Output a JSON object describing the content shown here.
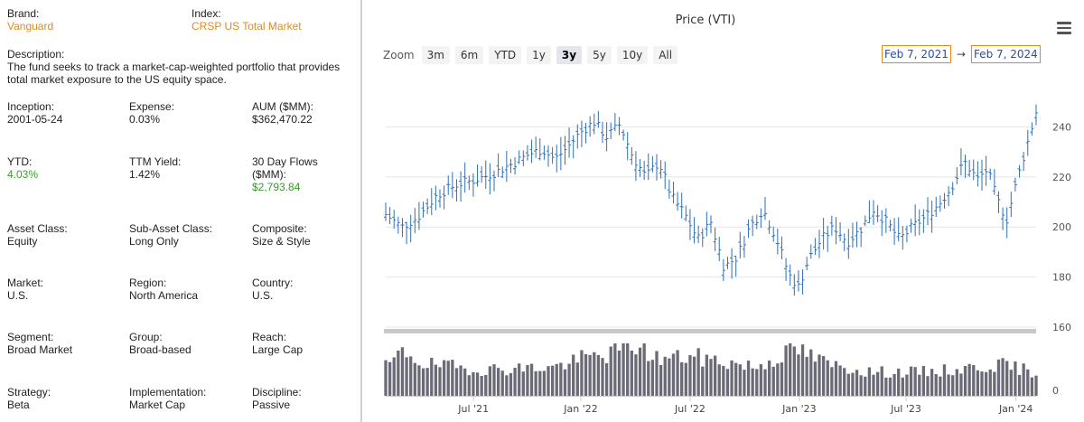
{
  "fund": {
    "brand": {
      "label": "Brand:",
      "value": "Vanguard"
    },
    "index": {
      "label": "Index:",
      "value": "CRSP US Total Market"
    },
    "description": {
      "label": "Description:",
      "value": "The fund seeks to track a market-cap-weighted portfolio that provides total market exposure to the US equity space."
    },
    "inception": {
      "label": "Inception:",
      "value": "2001-05-24"
    },
    "expense": {
      "label": "Expense:",
      "value": "0.03%"
    },
    "aum": {
      "label": "AUM ($MM):",
      "value": "$362,470.22"
    },
    "ytd": {
      "label": "YTD:",
      "value": "4.03%"
    },
    "ttm_yield": {
      "label": "TTM Yield:",
      "value": "1.42%"
    },
    "flows": {
      "label": "30 Day Flows ($MM):",
      "value": "$2,793.84"
    },
    "asset_class": {
      "label": "Asset Class:",
      "value": "Equity"
    },
    "sub_asset_class": {
      "label": "Sub-Asset Class:",
      "value": "Long Only"
    },
    "composite": {
      "label": "Composite:",
      "value": "Size & Style"
    },
    "market": {
      "label": "Market:",
      "value": "U.S."
    },
    "region": {
      "label": "Region:",
      "value": "North America"
    },
    "country": {
      "label": "Country:",
      "value": "U.S."
    },
    "segment": {
      "label": "Segment:",
      "value": "Broad Market"
    },
    "group": {
      "label": "Group:",
      "value": "Broad-based"
    },
    "reach": {
      "label": "Reach:",
      "value": "Large Cap"
    },
    "strategy": {
      "label": "Strategy:",
      "value": "Beta"
    },
    "implementation": {
      "label": "Implementation:",
      "value": "Market Cap"
    },
    "discipline": {
      "label": "Discipline:",
      "value": "Passive"
    }
  },
  "colors": {
    "accent": "#e08a1e",
    "positive": "#3a9a2e",
    "price": "#2f6fb5",
    "volume": "#6b6b78"
  },
  "zoom": {
    "label": "Zoom",
    "buttons": [
      "3m",
      "6m",
      "YTD",
      "1y",
      "3y",
      "5y",
      "10y",
      "All"
    ],
    "active": "3y"
  },
  "range": {
    "from": "Feb 7, 2021",
    "arrow": "→",
    "to": "Feb 7, 2024"
  },
  "chart_data": {
    "type": "line",
    "title": "Price (VTI)",
    "price_axis": {
      "ticks": [
        160,
        180,
        200,
        220,
        240
      ],
      "min": 160,
      "max": 260
    },
    "volume_axis": {
      "ticks": [
        0
      ]
    },
    "x_ticks": [
      "Jul '21",
      "Jan '22",
      "Jul '22",
      "Jan '23",
      "Jul '23",
      "Jan '24"
    ],
    "price_anchors": [
      {
        "t": 0.0,
        "v": 205
      },
      {
        "t": 0.025,
        "v": 200
      },
      {
        "t": 0.05,
        "v": 204
      },
      {
        "t": 0.08,
        "v": 213
      },
      {
        "t": 0.11,
        "v": 217
      },
      {
        "t": 0.14,
        "v": 219
      },
      {
        "t": 0.17,
        "v": 222
      },
      {
        "t": 0.2,
        "v": 226
      },
      {
        "t": 0.22,
        "v": 229
      },
      {
        "t": 0.24,
        "v": 231
      },
      {
        "t": 0.26,
        "v": 227
      },
      {
        "t": 0.28,
        "v": 232
      },
      {
        "t": 0.3,
        "v": 238
      },
      {
        "t": 0.32,
        "v": 242
      },
      {
        "t": 0.34,
        "v": 236
      },
      {
        "t": 0.36,
        "v": 241
      },
      {
        "t": 0.38,
        "v": 228
      },
      {
        "t": 0.4,
        "v": 220
      },
      {
        "t": 0.42,
        "v": 226
      },
      {
        "t": 0.44,
        "v": 212
      },
      {
        "t": 0.46,
        "v": 205
      },
      {
        "t": 0.48,
        "v": 195
      },
      {
        "t": 0.5,
        "v": 202
      },
      {
        "t": 0.52,
        "v": 184
      },
      {
        "t": 0.54,
        "v": 188
      },
      {
        "t": 0.56,
        "v": 200
      },
      {
        "t": 0.58,
        "v": 207
      },
      {
        "t": 0.6,
        "v": 196
      },
      {
        "t": 0.62,
        "v": 181
      },
      {
        "t": 0.635,
        "v": 176
      },
      {
        "t": 0.65,
        "v": 187
      },
      {
        "t": 0.67,
        "v": 195
      },
      {
        "t": 0.69,
        "v": 200
      },
      {
        "t": 0.71,
        "v": 194
      },
      {
        "t": 0.73,
        "v": 199
      },
      {
        "t": 0.75,
        "v": 207
      },
      {
        "t": 0.77,
        "v": 202
      },
      {
        "t": 0.79,
        "v": 195
      },
      {
        "t": 0.81,
        "v": 200
      },
      {
        "t": 0.83,
        "v": 204
      },
      {
        "t": 0.85,
        "v": 209
      },
      {
        "t": 0.87,
        "v": 216
      },
      {
        "t": 0.89,
        "v": 226
      },
      {
        "t": 0.91,
        "v": 219
      },
      {
        "t": 0.925,
        "v": 223
      },
      {
        "t": 0.94,
        "v": 211
      },
      {
        "t": 0.955,
        "v": 203
      },
      {
        "t": 0.97,
        "v": 218
      },
      {
        "t": 0.985,
        "v": 232
      },
      {
        "t": 1.0,
        "v": 246
      }
    ],
    "volume_anchors": [
      {
        "t": 0.0,
        "v": 0.55
      },
      {
        "t": 0.03,
        "v": 0.85
      },
      {
        "t": 0.06,
        "v": 0.6
      },
      {
        "t": 0.15,
        "v": 0.5
      },
      {
        "t": 0.26,
        "v": 0.55
      },
      {
        "t": 0.3,
        "v": 0.7
      },
      {
        "t": 0.34,
        "v": 0.8
      },
      {
        "t": 0.38,
        "v": 1.0
      },
      {
        "t": 0.42,
        "v": 0.7
      },
      {
        "t": 0.47,
        "v": 0.75
      },
      {
        "t": 0.52,
        "v": 0.65
      },
      {
        "t": 0.57,
        "v": 0.55
      },
      {
        "t": 0.63,
        "v": 0.9
      },
      {
        "t": 0.68,
        "v": 0.6
      },
      {
        "t": 0.75,
        "v": 0.45
      },
      {
        "t": 0.82,
        "v": 0.45
      },
      {
        "t": 0.88,
        "v": 0.5
      },
      {
        "t": 0.94,
        "v": 0.6
      },
      {
        "t": 1.0,
        "v": 0.45
      }
    ]
  }
}
